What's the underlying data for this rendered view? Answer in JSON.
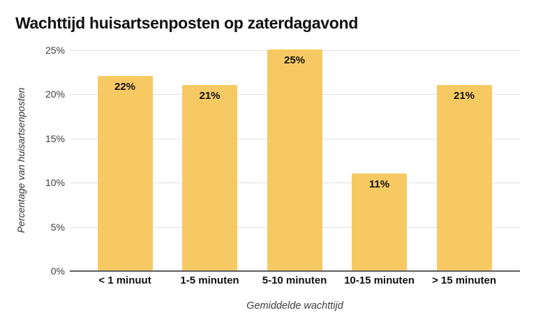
{
  "title": "Wachttijd huisartsenposten op zaterdagavond",
  "chart_data": {
    "type": "bar",
    "title": "Wachttijd huisartsenposten op zaterdagavond",
    "xlabel": "Gemiddelde wachttijd",
    "ylabel": "Percentage van huisartsenposten",
    "categories": [
      "< 1 minuut",
      "1-5 minuten",
      "5-10 minuten",
      "10-15 minuten",
      "> 15 minuten"
    ],
    "values": [
      22,
      21,
      25,
      11,
      21
    ],
    "bar_labels": [
      "22%",
      "21%",
      "25%",
      "11%",
      "21%"
    ],
    "ylim": [
      0,
      25
    ],
    "ytick_values": [
      0,
      5,
      10,
      15,
      20,
      25
    ],
    "ytick_labels": [
      "0%",
      "5%",
      "10%",
      "15%",
      "20%",
      "25%"
    ],
    "grid": "horizontal",
    "legend": "none",
    "bar_color": "#F6C963",
    "grid_color": "#E1E1E1",
    "axis_line_color": "#5E5E5E",
    "text_color": "#111111",
    "tick_text_color": "#3F3F3F"
  }
}
